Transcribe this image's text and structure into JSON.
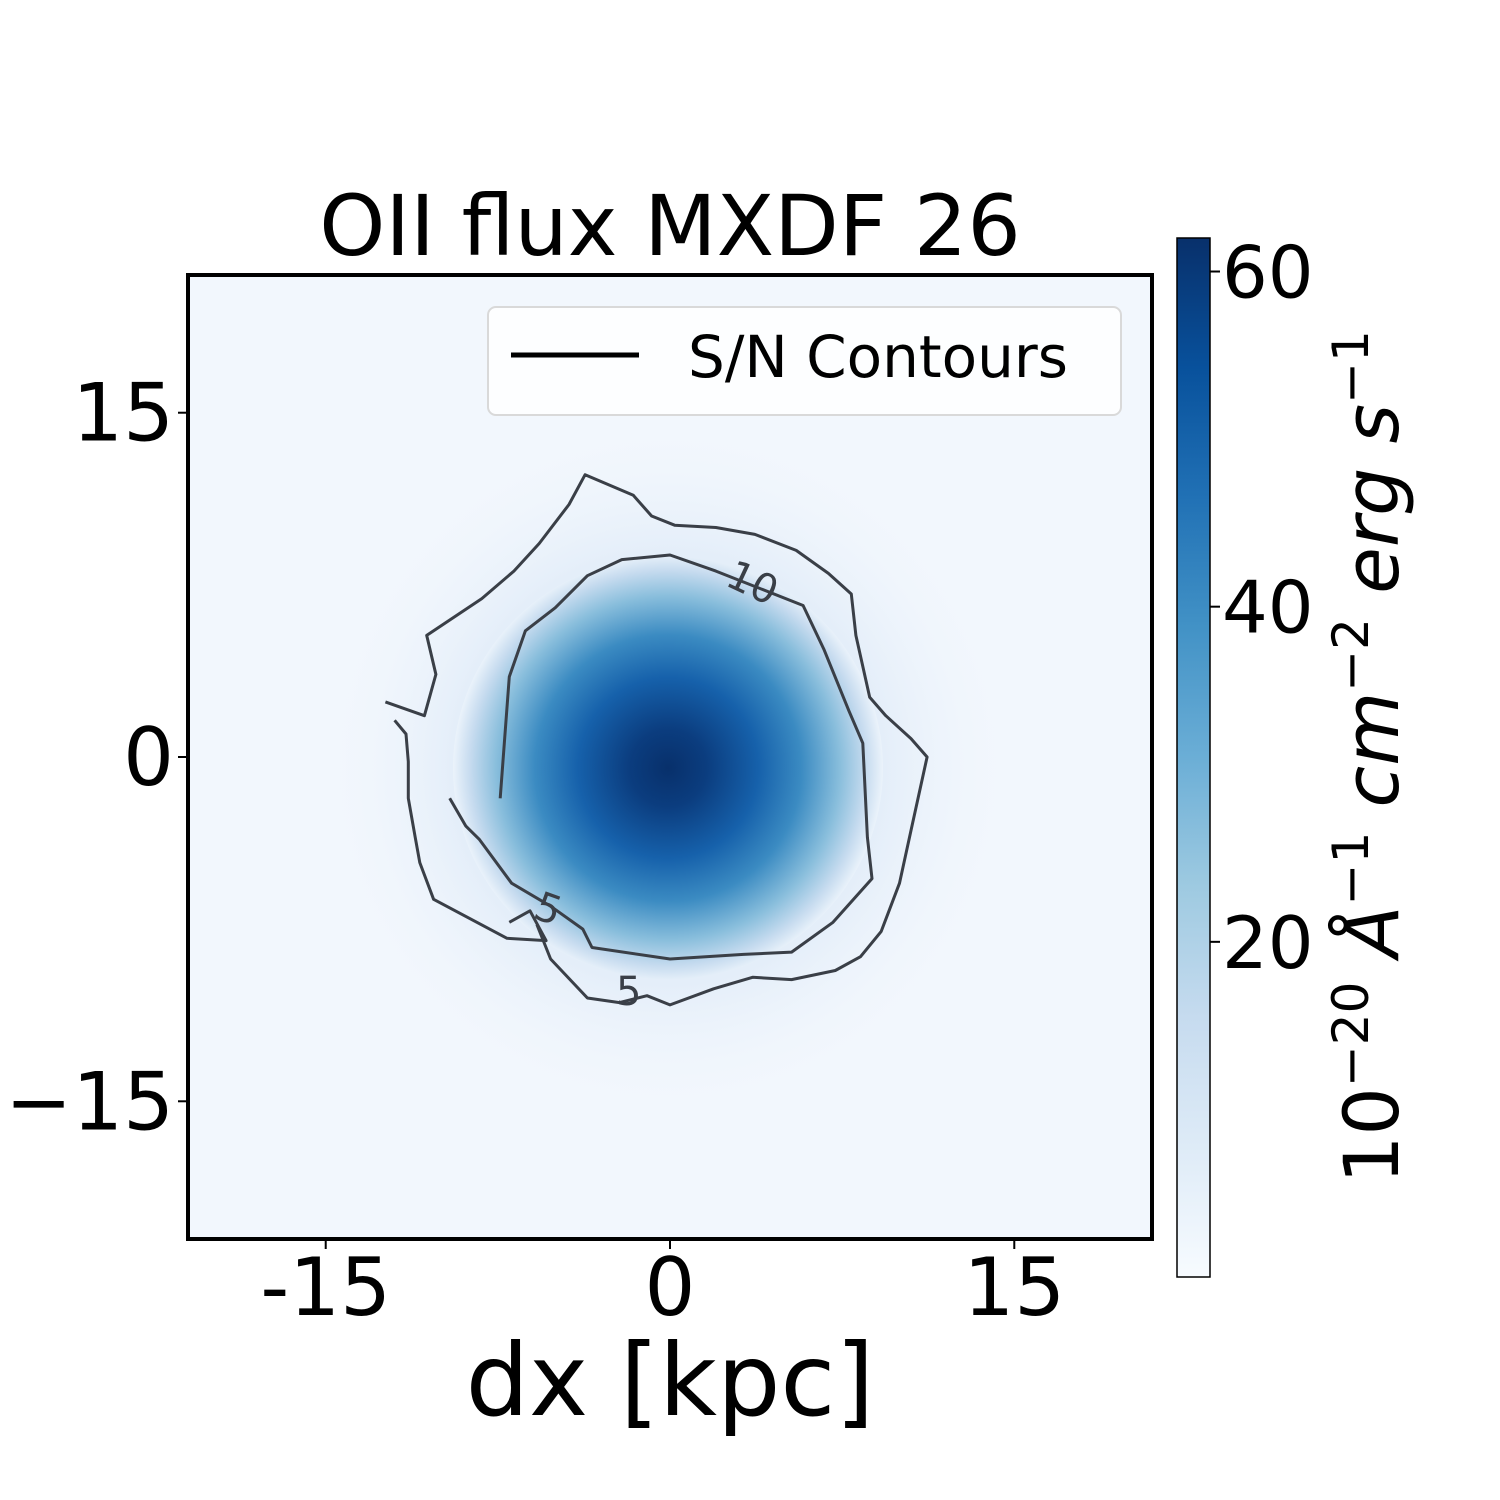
{
  "chart_data": {
    "type": "heatmap",
    "title": "OII flux MXDF 26",
    "xlabel": "dx [kpc]",
    "ylabel": "",
    "xlim": [
      -21,
      21
    ],
    "ylim": [
      -21,
      21
    ],
    "x_ticks": [
      {
        "value": -15,
        "label": "-15"
      },
      {
        "value": 0,
        "label": "0"
      },
      {
        "value": 15,
        "label": "15"
      }
    ],
    "y_ticks": [
      {
        "value": 15,
        "label": "15"
      },
      {
        "value": 0,
        "label": "0"
      },
      {
        "value": -15,
        "label": "−15"
      }
    ],
    "colormap": "Blues",
    "colorbar": {
      "vmin": 0,
      "vmax": 62,
      "ticks": [
        {
          "value": 20,
          "label": "20"
        },
        {
          "value": 40,
          "label": "40"
        },
        {
          "value": 60,
          "label": "60"
        }
      ],
      "label_parts": [
        "10",
        "−20",
        " Å",
        "−1",
        " cm",
        "−2",
        " erg s",
        "−1"
      ]
    },
    "peak": {
      "x": 0,
      "y": 0,
      "value": 62
    },
    "legend": {
      "entries": [
        {
          "label": "S/N Contours",
          "color": "#000000"
        }
      ],
      "position": "top-right"
    },
    "contours": [
      {
        "level": 10,
        "label_text": "10",
        "label_at": [
          3.6,
          7.6
        ],
        "points": [
          [
            -7.4,
            -1.8
          ],
          [
            -7.0,
            3.5
          ],
          [
            -6.3,
            5.5
          ],
          [
            -5,
            6.5
          ],
          [
            -3.6,
            7.9
          ],
          [
            -2.1,
            8.6
          ],
          [
            0,
            8.8
          ],
          [
            2.0,
            8.1
          ],
          [
            5.8,
            6.6
          ],
          [
            6.7,
            4.7
          ],
          [
            7.8,
            2.0
          ],
          [
            8.4,
            0.6
          ],
          [
            8.6,
            -3.5
          ],
          [
            8.8,
            -5.3
          ],
          [
            7.1,
            -7.2
          ],
          [
            5.3,
            -8.5
          ],
          [
            3.2,
            -8.6
          ],
          [
            0,
            -8.8
          ],
          [
            -3.4,
            -8.3
          ],
          [
            -3.8,
            -7.5
          ],
          [
            -5.2,
            -6.5
          ],
          [
            -6.9,
            -5.5
          ],
          [
            -8.3,
            -3.6
          ],
          [
            -8.9,
            -3.0
          ],
          [
            -9.6,
            -1.8
          ]
        ]
      },
      {
        "level": 5,
        "label_text": "5",
        "label_at": [
          -5.3,
          -6.6
        ],
        "points": [
          [
            -12.0,
            1.6
          ],
          [
            -11.5,
            1.0
          ],
          [
            -11.4,
            -0.2
          ],
          [
            -11.4,
            -1.8
          ],
          [
            -11.1,
            -3.5
          ],
          [
            -10.9,
            -4.6
          ],
          [
            -10.3,
            -6.2
          ],
          [
            -7.1,
            -7.9
          ],
          [
            -5.4,
            -8.0
          ],
          [
            -6.1,
            -6.7
          ],
          [
            -7.0,
            -7.2
          ]
        ]
      },
      {
        "level": 5,
        "label_text": "5",
        "label_at": [
          -1.8,
          -10.2
        ],
        "points": [
          [
            -12.4,
            2.4
          ],
          [
            -10.7,
            1.8
          ],
          [
            -10.2,
            3.6
          ],
          [
            -10.6,
            5.3
          ],
          [
            -8.2,
            6.9
          ],
          [
            -6.8,
            8.1
          ],
          [
            -5.7,
            9.3
          ],
          [
            -4.4,
            11.0
          ],
          [
            -3.7,
            12.3
          ],
          [
            -1.6,
            11.4
          ],
          [
            -0.8,
            10.5
          ],
          [
            0.2,
            10.1
          ],
          [
            2.0,
            10.0
          ],
          [
            3.7,
            9.7
          ],
          [
            5.5,
            9.0
          ],
          [
            6.9,
            8.0
          ],
          [
            7.9,
            7.1
          ],
          [
            8.1,
            5.3
          ],
          [
            8.7,
            2.6
          ],
          [
            9.4,
            1.8
          ],
          [
            10.5,
            0.8
          ],
          [
            11.2,
            0.0
          ],
          [
            10.5,
            -3.2
          ],
          [
            10.0,
            -5.5
          ],
          [
            9.2,
            -7.6
          ],
          [
            8.3,
            -8.7
          ],
          [
            7.2,
            -9.3
          ],
          [
            5.3,
            -9.7
          ],
          [
            3.6,
            -9.6
          ],
          [
            1.9,
            -10.1
          ],
          [
            0,
            -10.8
          ],
          [
            -1.0,
            -10.4
          ],
          [
            -2.2,
            -10.7
          ],
          [
            -3.6,
            -10.5
          ],
          [
            -5.2,
            -8.8
          ],
          [
            -5.8,
            -7.3
          ]
        ]
      }
    ]
  }
}
